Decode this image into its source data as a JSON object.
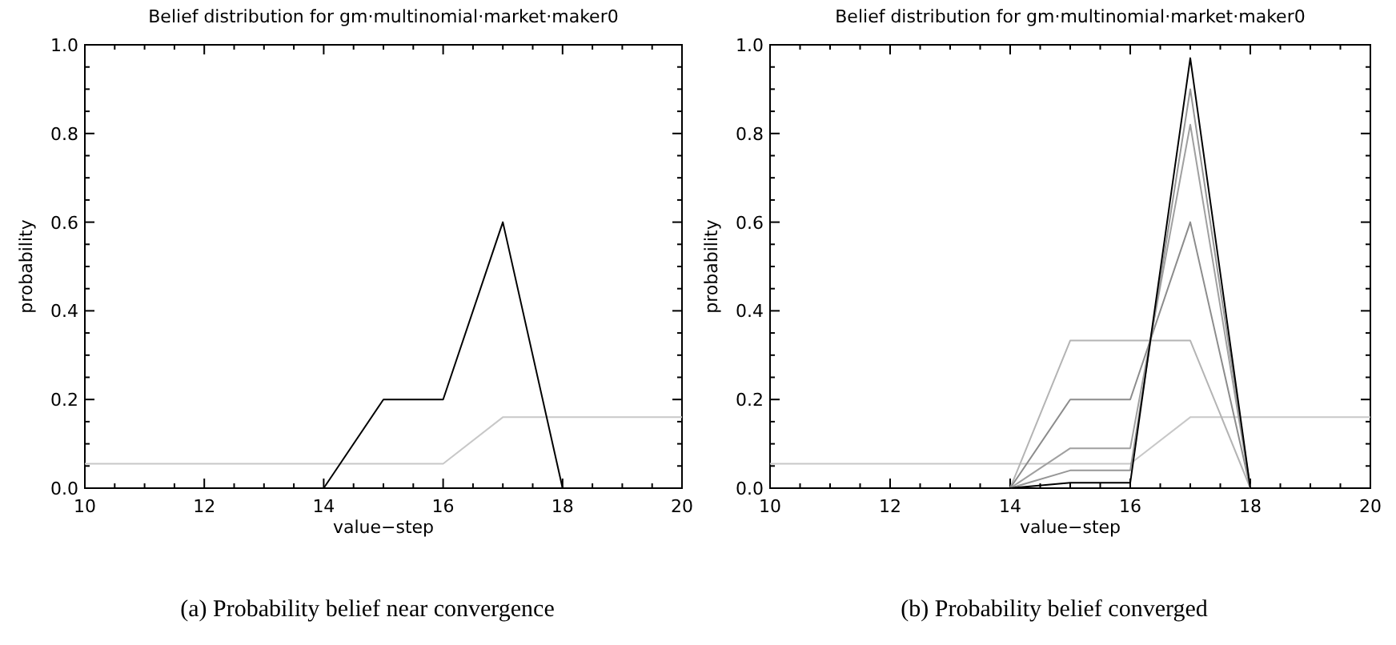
{
  "chart_data": [
    {
      "type": "line",
      "title": "Belief distribution for gm·multinomial·market·maker0",
      "xlabel": "value−step",
      "ylabel": "probability",
      "annotations": [
        "(a) Probability belief near convergence"
      ],
      "x": [
        10,
        11,
        12,
        13,
        14,
        15,
        16,
        17,
        18,
        19,
        20
      ],
      "xlim": [
        10,
        20
      ],
      "ylim": [
        0,
        1
      ],
      "xticks": [
        10,
        {
          "value": 10.5,
          "label": null
        },
        {
          "value": 11,
          "label": null
        },
        {
          "value": 11.5,
          "label": null
        },
        12,
        {
          "value": 12.5,
          "label": null
        },
        {
          "value": 13,
          "label": null
        },
        {
          "value": 13.5,
          "label": null
        },
        14,
        {
          "value": 14.5,
          "label": null
        },
        {
          "value": 15,
          "label": null
        },
        {
          "value": 15.5,
          "label": null
        },
        16,
        {
          "value": 16.5,
          "label": null
        },
        {
          "value": 17,
          "label": null
        },
        {
          "value": 17.5,
          "label": null
        },
        18,
        {
          "value": 18.5,
          "label": null
        },
        {
          "value": 19,
          "label": null
        },
        {
          "value": 19.5,
          "label": null
        },
        20
      ],
      "yticks": [
        {
          "value": 0,
          "label": "0.0"
        },
        {
          "value": 0.05,
          "label": null
        },
        {
          "value": 0.1,
          "label": null
        },
        {
          "value": 0.15,
          "label": null
        },
        {
          "value": 0.2,
          "label": "0.2"
        },
        {
          "value": 0.25,
          "label": null
        },
        {
          "value": 0.3,
          "label": null
        },
        {
          "value": 0.35,
          "label": null
        },
        {
          "value": 0.4,
          "label": "0.4"
        },
        {
          "value": 0.45,
          "label": null
        },
        {
          "value": 0.5,
          "label": null
        },
        {
          "value": 0.55,
          "label": null
        },
        {
          "value": 0.6,
          "label": "0.6"
        },
        {
          "value": 0.65,
          "label": null
        },
        {
          "value": 0.7,
          "label": null
        },
        {
          "value": 0.75,
          "label": null
        },
        {
          "value": 0.8,
          "label": "0.8"
        },
        {
          "value": 0.85,
          "label": null
        },
        {
          "value": 0.9,
          "label": null
        },
        {
          "value": 0.95,
          "label": null
        },
        {
          "value": 1,
          "label": "1.0"
        }
      ],
      "series": [
        {
          "color": "#c8c8c8",
          "values": [
            0.055,
            0.055,
            0.055,
            0.055,
            0.055,
            0.055,
            0.055,
            0.16,
            0.16,
            0.16,
            0.16
          ]
        },
        {
          "color": "#000000",
          "values": [
            0,
            0,
            0,
            0,
            0,
            0.2,
            0.2,
            0.6,
            0,
            0,
            0
          ]
        }
      ]
    },
    {
      "type": "line",
      "title": "Belief distribution for gm·multinomial·market·maker0",
      "xlabel": "value−step",
      "ylabel": "probability",
      "annotations": [
        "(b) Probability belief converged"
      ],
      "x": [
        10,
        11,
        12,
        13,
        14,
        15,
        16,
        17,
        18,
        19,
        20
      ],
      "xlim": [
        10,
        20
      ],
      "ylim": [
        0,
        1
      ],
      "xticks": [
        10,
        {
          "value": 10.5,
          "label": null
        },
        {
          "value": 11,
          "label": null
        },
        {
          "value": 11.5,
          "label": null
        },
        12,
        {
          "value": 12.5,
          "label": null
        },
        {
          "value": 13,
          "label": null
        },
        {
          "value": 13.5,
          "label": null
        },
        14,
        {
          "value": 14.5,
          "label": null
        },
        {
          "value": 15,
          "label": null
        },
        {
          "value": 15.5,
          "label": null
        },
        16,
        {
          "value": 16.5,
          "label": null
        },
        {
          "value": 17,
          "label": null
        },
        {
          "value": 17.5,
          "label": null
        },
        18,
        {
          "value": 18.5,
          "label": null
        },
        {
          "value": 19,
          "label": null
        },
        {
          "value": 19.5,
          "label": null
        },
        20
      ],
      "yticks": [
        {
          "value": 0,
          "label": "0.0"
        },
        {
          "value": 0.05,
          "label": null
        },
        {
          "value": 0.1,
          "label": null
        },
        {
          "value": 0.15,
          "label": null
        },
        {
          "value": 0.2,
          "label": "0.2"
        },
        {
          "value": 0.25,
          "label": null
        },
        {
          "value": 0.3,
          "label": null
        },
        {
          "value": 0.35,
          "label": null
        },
        {
          "value": 0.4,
          "label": "0.4"
        },
        {
          "value": 0.45,
          "label": null
        },
        {
          "value": 0.5,
          "label": null
        },
        {
          "value": 0.55,
          "label": null
        },
        {
          "value": 0.6,
          "label": "0.6"
        },
        {
          "value": 0.65,
          "label": null
        },
        {
          "value": 0.7,
          "label": null
        },
        {
          "value": 0.75,
          "label": null
        },
        {
          "value": 0.8,
          "label": "0.8"
        },
        {
          "value": 0.85,
          "label": null
        },
        {
          "value": 0.9,
          "label": null
        },
        {
          "value": 0.95,
          "label": null
        },
        {
          "value": 1,
          "label": "1.0"
        }
      ],
      "series": [
        {
          "color": "#c8c8c8",
          "values": [
            0.055,
            0.055,
            0.055,
            0.055,
            0.055,
            0.055,
            0.055,
            0.16,
            0.16,
            0.16,
            0.16
          ]
        },
        {
          "color": "#b4b4b4",
          "values": [
            0,
            0,
            0,
            0,
            0,
            0.333,
            0.333,
            0.333,
            0,
            0,
            0
          ]
        },
        {
          "color": "#8c8c8c",
          "values": [
            0,
            0,
            0,
            0,
            0,
            0.2,
            0.2,
            0.6,
            0,
            0,
            0
          ]
        },
        {
          "color": "#a0a0a0",
          "values": [
            0,
            0,
            0,
            0,
            0,
            0.09,
            0.09,
            0.82,
            0,
            0,
            0
          ]
        },
        {
          "color": "#969696",
          "values": [
            0,
            0,
            0,
            0,
            0,
            0.04,
            0.04,
            0.9,
            0,
            0,
            0
          ]
        },
        {
          "color": "#000000",
          "values": [
            0,
            0,
            0,
            0,
            0,
            0.012,
            0.012,
            0.97,
            0,
            0,
            0
          ]
        }
      ]
    }
  ]
}
